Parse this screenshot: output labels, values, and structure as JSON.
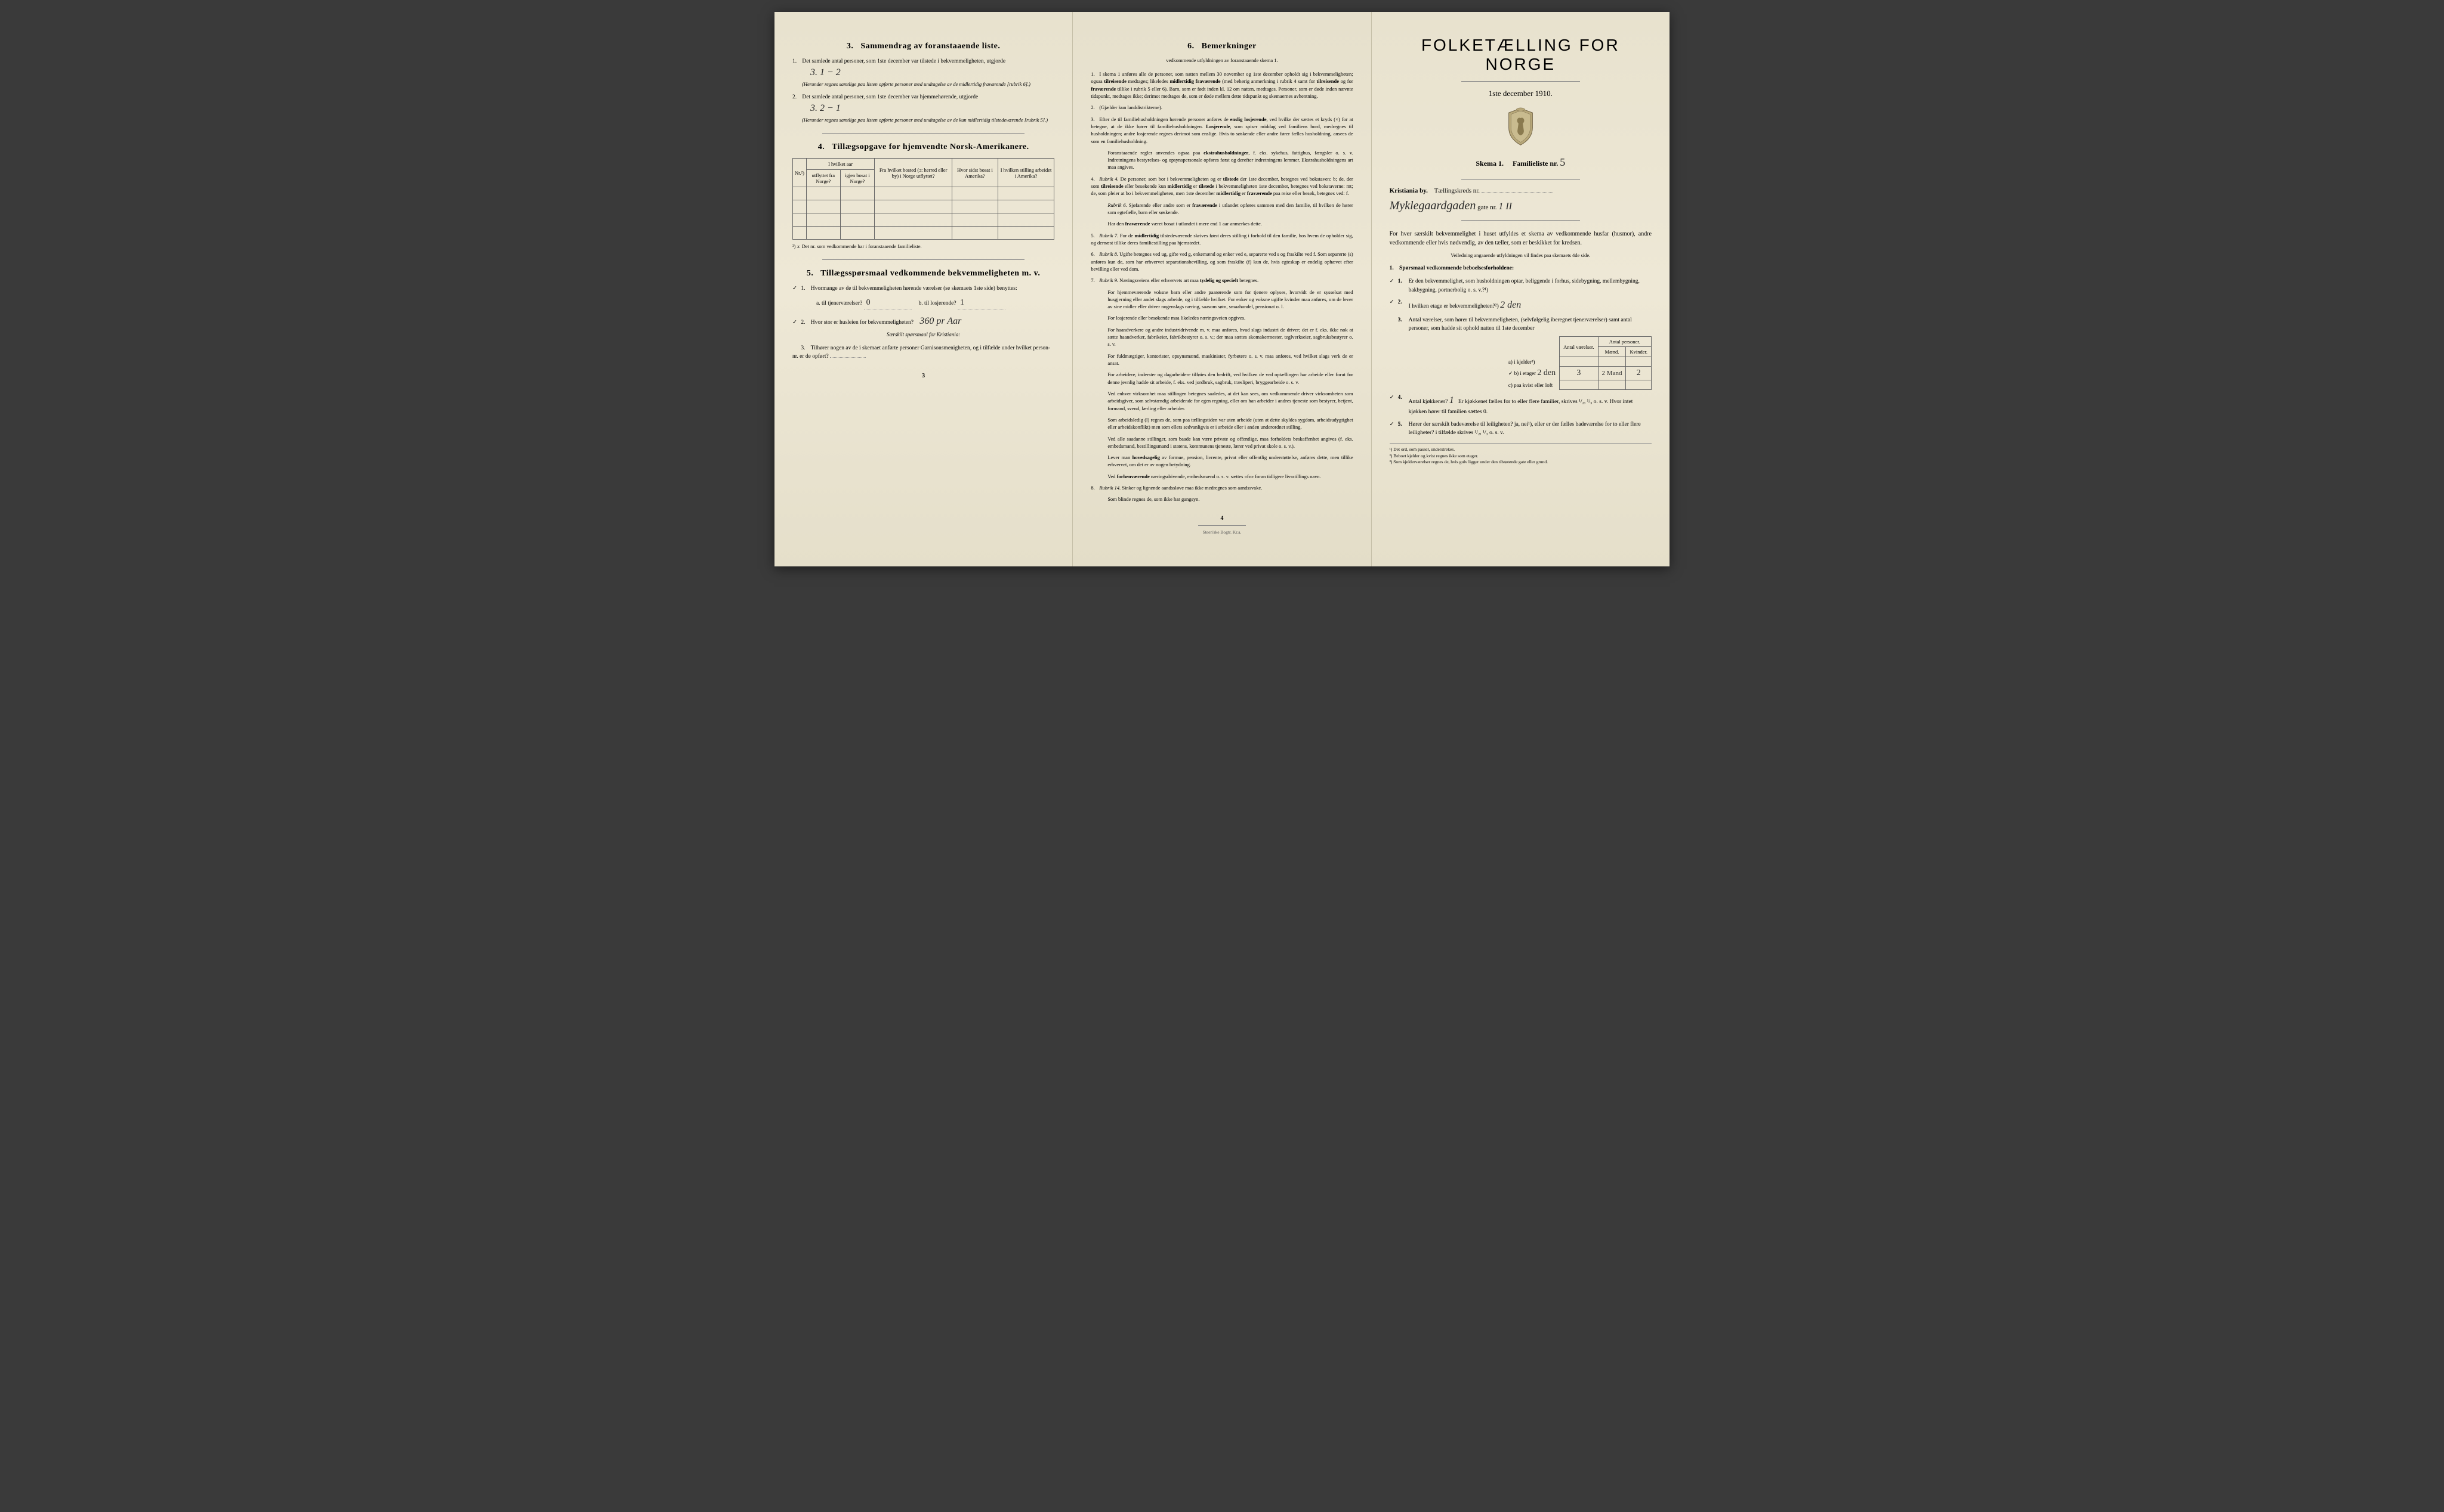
{
  "page1": {
    "s3": {
      "title": "Sammendrag av foranstaaende liste.",
      "num": "3.",
      "item1_text": "Det samlede antal personer, som 1ste december var tilstede i bekvemmeligheten, utgjorde",
      "item1_hw": "3.   1 − 2",
      "item1_note": "(Herunder regnes samtlige paa listen opførte personer med undtagelse av de midlertidig fraværende [rubrik 6].)",
      "item2_text": "Det samlede antal personer, som 1ste december var hjemmehørende, utgjorde",
      "item2_hw": "3.   2 − 1",
      "item2_note": "(Herunder regnes samtlige paa listen opførte personer med undtagelse av de kun midlertidig tilstedeværende [rubrik 5].)"
    },
    "s4": {
      "title": "Tillægsopgave for hjemvendte Norsk-Amerikanere.",
      "num": "4.",
      "cols": [
        "Nr.²)",
        "I hvilket aar",
        "Fra hvilket bosted (ɔ: herred eller by) i Norge utflyttet?",
        "Hvor sidst bosat i Amerika?",
        "I hvilken stilling arbeidet i Amerika?"
      ],
      "subcols": [
        "utflyttet fra Norge?",
        "igjen bosat i Norge?"
      ],
      "footnote": "²) ɔ: Det nr. som vedkommende har i foranstaaende familieliste."
    },
    "s5": {
      "title": "Tillægsspørsmaal vedkommende bekvemmeligheten m. v.",
      "num": "5.",
      "q1": "Hvormange av de til bekvemmeligheten hørende værelser (se skemaets 1ste side) benyttes:",
      "q1a": "a. til tjenerværelser?",
      "q1a_hw": "0",
      "q1b": "b. til losjerende?",
      "q1b_hw": "1",
      "q2": "Hvor stor er husleien for bekvemmeligheten?",
      "q2_hw": "360 pr Aar",
      "q2_note": "Særskilt spørsmaal for Kristiania:",
      "q3": "Tilhører nogen av de i skemaet anførte personer Garnisonsmenigheten, og i tilfælde under hvilket person-nr. er de opført?",
      "q3_fill": ""
    },
    "check1": "✓",
    "check2": "✓",
    "pagenum": "3"
  },
  "page2": {
    "title": "Bemerkninger",
    "num": "6.",
    "subtitle": "vedkommende utfyldningen av foranstaaende skema 1.",
    "items": [
      {
        "n": "1.",
        "t": "I skema 1 anføres alle de personer, som natten mellem 30 november og 1ste december opholdt sig i bekvemmeligheten; ogsaa tilreisende medtages; likeledes midlertidig fraværende (med behørig anmerkning i rubrik 4 samt for tilreisende og for fraværende tillike i rubrik 5 eller 6). Barn, som er født inden kl. 12 om natten, medtages. Personer, som er døde inden nævnte tidspunkt, medtages ikke; derimot medtages de, som er døde mellem dette tidspunkt og skemaernes avhentning."
      },
      {
        "n": "2.",
        "t": "(Gjælder kun landdistrikterne)."
      },
      {
        "n": "3.",
        "t": "Efter de til familiehusholdningen hørende personer anføres de enslig losjerende, ved hvilke der sættes et kryds (×) for at betegne, at de ikke hører til familiehusholdningen. Losjerende, som spiser middag ved familiens bord, medregnes til husholdningen; andre losjerende regnes derimot som enslige. Hvis to søskende eller andre fører fælles husholdning, ansees de som en familiehusholdning.",
        "extra": "Foranstaaende regler anvendes ogsaa paa ekstrahusholdninger, f. eks. sykehus, fattighus, fængsler o. s. v. Indretningens bestyrelses- og opsynspersonale opføres først og derefter indretningens lemmer. Ekstrahusholdningens art maa angives."
      },
      {
        "n": "4.",
        "t": "Rubrik 4. De personer, som bor i bekvemmeligheten og er tilstede der 1ste december, betegnes ved bokstaven: b; de, der som tilreisende eller besøkende kun midlertidig er tilstede i bekvemmeligheten 1ste december, betegnes ved bokstaverne: mt; de, som pleier at bo i bekvemmeligheten, men 1ste december midlertidig er fraværende paa reise eller besøk, betegnes ved: f.",
        "extra": "Rubrik 6. Sjøfarende eller andre som er fraværende i utlandet opføres sammen med den familie, til hvilken de hører som egtefælle, barn eller søskende.",
        "extra2": "Har den fraværende været bosat i utlandet i mere end 1 aar anmerkes dette."
      },
      {
        "n": "5.",
        "t": "Rubrik 7. For de midlertidig tilstedeværende skrives først deres stilling i forhold til den familie, hos hvem de opholder sig, og dernæst tillike deres familiestilling paa hjemstedet."
      },
      {
        "n": "6.",
        "t": "Rubrik 8. Ugifte betegnes ved ug, gifte ved g, enkemænd og enker ved e, separerte ved s og fraskilte ved f. Som separerte (s) anføres kun de, som har erhvervet separationsbevilling, og som fraskilte (f) kun de, hvis egteskap er endelig ophævet efter bevilling eller ved dom."
      },
      {
        "n": "7.",
        "t": "Rubrik 9. Næringsveiens eller erhvervets art maa tydelig og specielt betegnes.",
        "paras": [
          "For hjemmeværende voksne barn eller andre paarørende som for tjenere oplyses, hvorvidt de er sysselsat med husgjerning eller andet slags arbeide, og i tilfælde hvilket. For enker og voksne ugifte kvinder maa anføres, om de lever av sine midler eller driver nogenslags næring, saasom søm, smaahandel, pensionat o. l.",
          "For losjerende eller besøkende maa likeledes næringsveien opgives.",
          "For haandverkere og andre industridrivende m. v. maa anføres, hvad slags industri de driver; det er f. eks. ikke nok at sætte haandverker, fabrikeier, fabrikbestyrer o. s. v.; der maa sættes skomakermester, teglverkseier, sagbruksbestyrer o. s. v.",
          "For fuldmægtiger, kontorister, opsynsmænd, maskinister, fyrbøtere o. s. v. maa anføres, ved hvilket slags verk de er ansat.",
          "For arbeidere, inderster og dagarbeidere tilføies den bedrift, ved hvilken de ved optællingen har arbeide eller forut for denne jevnlig hadde sit arbeide, f. eks. ved jordbruk, sagbruk, træsliperi, bryggearbeide o. s. v.",
          "Ved enhver virksomhet maa stillingen betegnes saaledes, at det kan sees, om vedkommende driver virksomheten som arbeidsgiver, som selvstændig arbeidende for egen regning, eller om han arbeider i andres tjeneste som bestyrer, betjent, formand, svend, lærling eller arbeider.",
          "Som arbeidsledig (l) regnes de, som paa tællingstiden var uten arbeide (uten at dette skyldes sygdom, arbeidsudygtighet eller arbeidskonflikt) men som ellers sedvanligvis er i arbeide eller i anden underordnet stilling.",
          "Ved alle saadanne stillinger, som baade kan være private og offentlige, maa forholdets beskaffenhet angives (f. eks. embedsmand, bestillingsmand i statens, kommunens tjeneste, lærer ved privat skole o. s. v.).",
          "Lever man hovedsagelig av formue, pension, livrente, privat eller offentlig understøttelse, anføres dette, men tillike erhvervet, om det er av nogen betydning.",
          "Ved forhenværende næringsdrivende, embedsmænd o. s. v. sættes «fv» foran tidligere livsstillings navn."
        ]
      },
      {
        "n": "8.",
        "t": "Rubrik 14. Sinker og lignende aandssløve maa ikke medregnes som aandssvake.",
        "extra": "Som blinde regnes de, som ikke har gangsyn."
      }
    ],
    "pagenum": "4",
    "printer": "Steen'ske Bogtr. Kr.a."
  },
  "page3": {
    "title": "FOLKETÆLLING FOR NORGE",
    "subtitle": "1ste december 1910.",
    "skema": "Skema 1.",
    "famlist": "Familieliste nr.",
    "famlist_hw": "5",
    "city": "Kristiania by.",
    "kreds": "Tællingskreds nr.",
    "kreds_hw": "",
    "street_hw": "Myklegaardgaden",
    "street_label": "gate nr.",
    "street_num_hw": "1 II",
    "intro": "For hver særskilt bekvemmelighet i huset utfyldes et skema av vedkommende husfar (husmor), andre vedkommende eller hvis nødvendig, av den tæller, som er beskikket for kredsen.",
    "intro_sub": "Veiledning angaaende utfyldningen vil findes paa skemaets 4de side.",
    "q_title": "Spørsmaal vedkommende beboelsesforholdene:",
    "q1": {
      "check": "✓",
      "n": "1.",
      "t": "Er den bekvemmelighet, som husholdningen optar, beliggende i forhus, sidebygning, mellembygning, bakbygning, portnerbolig o. s. v.?¹)"
    },
    "q2": {
      "check": "✓",
      "n": "2.",
      "t": "I hvilken etage er bekvemmeligheten?²)",
      "hw": "2 den"
    },
    "q3": {
      "check": "",
      "n": "3.",
      "t": "Antal værelser, som hører til bekvemmeligheten, (selvfølgelig iberegnet tjenerværelser) samt antal personer, som hadde sit ophold natten til 1ste december"
    },
    "table": {
      "headers": [
        "",
        "Antal værelser.",
        "Antal personer."
      ],
      "subheaders": [
        "",
        "",
        "Mænd.",
        "Kvinder."
      ],
      "rows": [
        {
          "label": "a) i kjelder³)",
          "v": "",
          "m": "",
          "k": ""
        },
        {
          "label": "b) i etager",
          "etage_hw": "2 den",
          "v": "3",
          "m": "2 Mand",
          "k": "2",
          "check": "✓"
        },
        {
          "label": "c) paa kvist eller loft",
          "v": "",
          "m": "",
          "k": ""
        }
      ]
    },
    "q4": {
      "check": "✓",
      "n": "4.",
      "t": "Antal kjøkkener?",
      "hw": "1",
      "t2": "Er kjøkkenet fælles for to eller flere familier, skrives ¹/₂, ¹/₃ o. s. v. Hvor intet kjøkken hører til familien sættes 0."
    },
    "q5": {
      "check": "✓",
      "n": "5.",
      "t": "Hører der særskilt badeværelse til leiligheten? ja, nei¹), eller er der fælles badeværelse for to eller flere leiligheter? i tilfælde skrives ¹/₂, ¹/₃ o. s. v."
    },
    "footnotes": [
      "¹) Det ord, som passer, understrekes.",
      "²) Beboet kjelder og kvist regnes ikke som etager.",
      "³) Som kjelderværelser regnes de, hvis gulv ligger under den tilstøtende gate eller grund."
    ]
  }
}
